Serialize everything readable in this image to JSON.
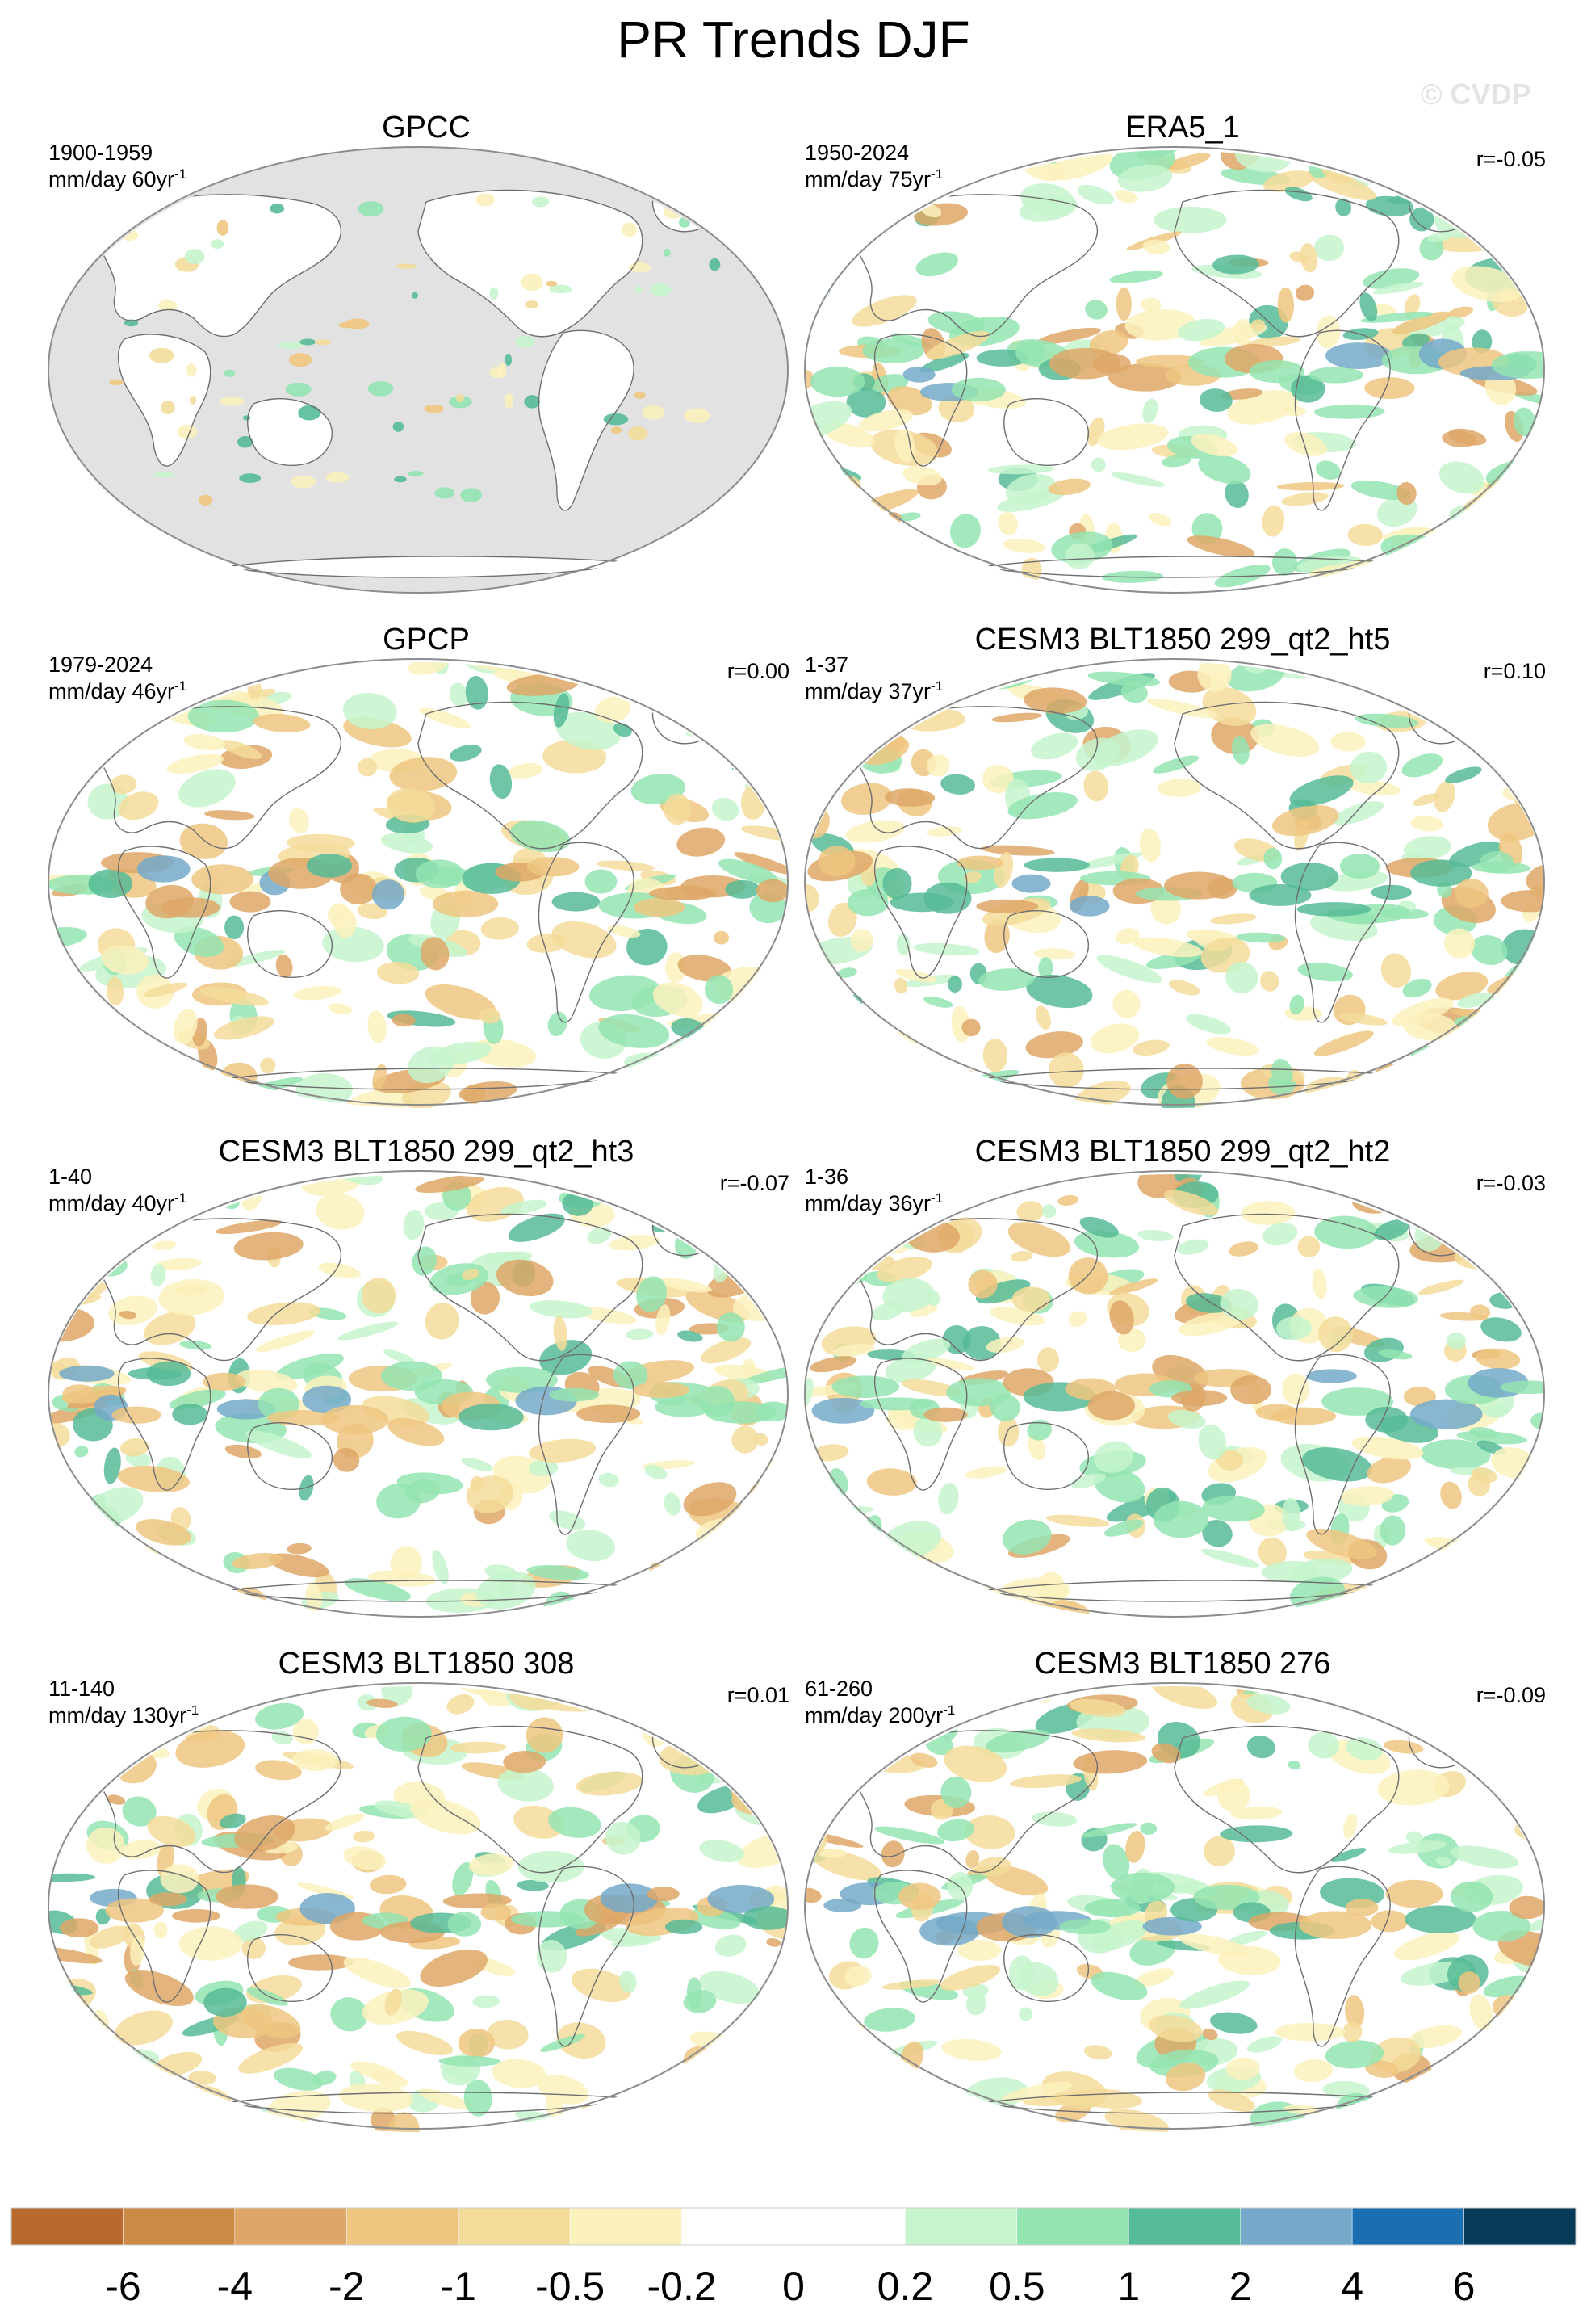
{
  "title": "PR Trends DJF",
  "watermark": "© CVDP",
  "units_prefix": "mm/day",
  "units_suffix": "yr",
  "units_exponent": "-1",
  "panels": [
    {
      "title": "GPCC",
      "period": "1900-1959",
      "span": "60",
      "r": "",
      "ocean_masked": true
    },
    {
      "title": "ERA5_1",
      "period": "1950-2024",
      "span": "75",
      "r": "r=-0.05",
      "ocean_masked": false
    },
    {
      "title": "GPCP",
      "period": "1979-2024",
      "span": "46",
      "r": "r=0.00",
      "ocean_masked": false
    },
    {
      "title": "CESM3 BLT1850 299_qt2_ht5",
      "period": "1-37",
      "span": "37",
      "r": "r=0.10",
      "ocean_masked": false
    },
    {
      "title": "CESM3 BLT1850 299_qt2_ht3",
      "period": "1-40",
      "span": "40",
      "r": "r=-0.07",
      "ocean_masked": false
    },
    {
      "title": "CESM3 BLT1850 299_qt2_ht2",
      "period": "1-36",
      "span": "36",
      "r": "r=-0.03",
      "ocean_masked": false
    },
    {
      "title": "CESM3 BLT1850 308",
      "period": "11-140",
      "span": "130",
      "r": "r=0.01",
      "ocean_masked": false
    },
    {
      "title": "CESM3 BLT1850 276",
      "period": "61-260",
      "span": "200",
      "r": "r=-0.09",
      "ocean_masked": false
    }
  ],
  "colorbar": {
    "colors": [
      "#b8692e",
      "#cd8a46",
      "#dea767",
      "#efc680",
      "#f3dc9a",
      "#fbf1bd",
      "#ffffff",
      "#ffffff",
      "#c6f5cd",
      "#94e4b2",
      "#56bb97",
      "#74a9c9",
      "#1a6fb1",
      "#083a5a"
    ],
    "labels": [
      "-6",
      "-4",
      "-2",
      "-1",
      "-0.5",
      "-0.2",
      "0",
      "0.2",
      "0.5",
      "1",
      "2",
      "4",
      "6"
    ]
  },
  "map_colors": {
    "land_mask": "#e2e2e2",
    "coastline": "#6e6e6e",
    "border": "#8c8c8c"
  }
}
